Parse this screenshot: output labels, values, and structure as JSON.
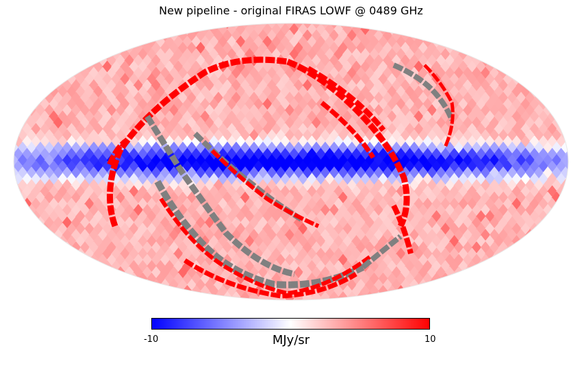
{
  "figure": {
    "title": "New pipeline - original FIRAS LOWF @ 0489 GHz",
    "projection": "mollweide"
  },
  "colorbar": {
    "min_label": "-10",
    "max_label": "10",
    "unit": "MJy/sr",
    "min_value": -10,
    "max_value": 10,
    "colors": {
      "low": "#0000ff",
      "mid": "#ffffff",
      "high": "#ff0000",
      "masked": "#808080"
    }
  }
}
